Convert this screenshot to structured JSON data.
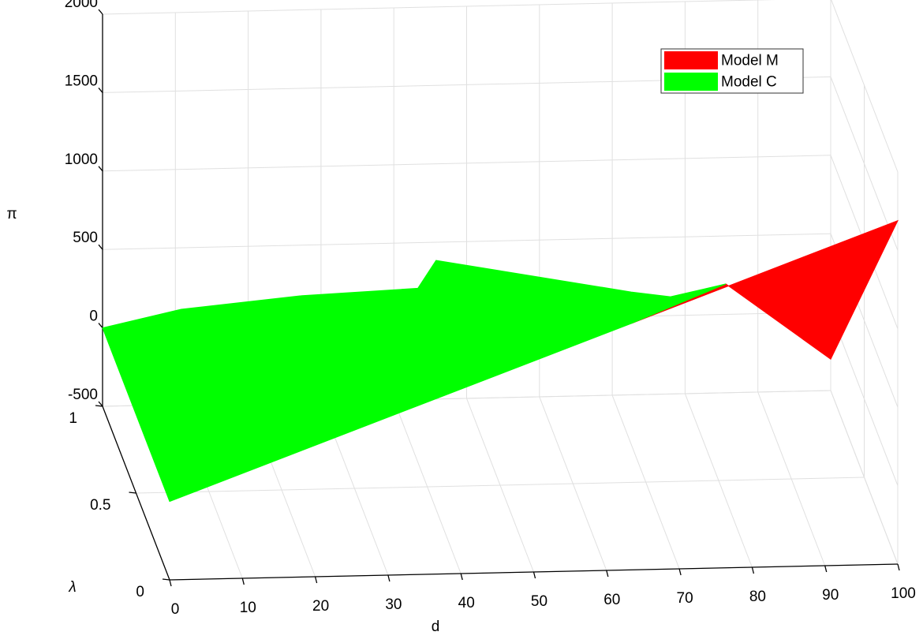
{
  "chart_data": {
    "type": "surface3d",
    "xlabel": "d",
    "ylabel": "λ",
    "zlabel": "π",
    "xlim": [
      0,
      100
    ],
    "ylim": [
      0,
      1
    ],
    "zlim": [
      -500,
      2000
    ],
    "xticks": [
      0,
      10,
      20,
      30,
      40,
      50,
      60,
      70,
      80,
      90,
      100
    ],
    "yticks": [
      0,
      0.5,
      1
    ],
    "zticks": [
      -500,
      0,
      500,
      1000,
      1500,
      2000
    ],
    "grid": true,
    "legend": "upper right",
    "series": [
      {
        "name": "Model M",
        "color": "#ff0000",
        "x": [
          63.4,
          85.6,
          100,
          100
        ],
        "y": [
          0,
          1,
          1,
          0
        ],
        "z": [
          1071,
          194,
          -300,
          1690
        ]
      },
      {
        "name": "Model C",
        "color": "#00ff00",
        "x": [
          0,
          0,
          10.8,
          27.1,
          43.3,
          45.8,
          72.6,
          78,
          85.6,
          63.4
        ],
        "y": [
          0,
          1,
          1,
          1,
          1,
          1,
          1,
          1,
          1,
          0
        ],
        "z": [
          0,
          0,
          108,
          177,
          209,
          384,
          156,
          120,
          194,
          1071
        ]
      }
    ]
  }
}
